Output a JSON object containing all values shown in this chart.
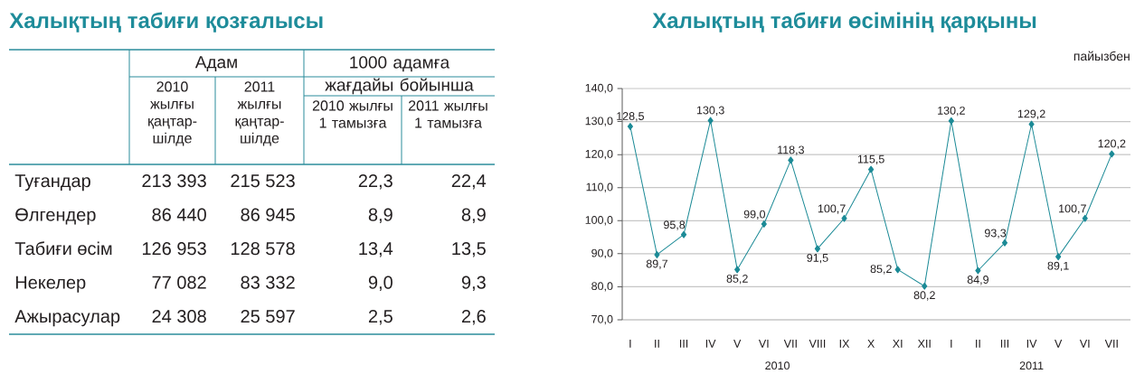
{
  "chart_data": [
    {
      "type": "other",
      "title": "Халықтың табиғи қозғалысы",
      "annotations": [
        "Адам",
        "1000 адамға жағдайы бойынша"
      ],
      "categories": [
        "2010 жылғы қаңтар-шілде",
        "2011 жылғы қаңтар-шілде",
        "2010 жылғы 1 тамызға",
        "2011 жылғы 1 тамызға"
      ],
      "y_categories": [
        "Туғандар",
        "Өлгендер",
        "Табиғи өсім",
        "Некелер",
        "Ажырасулар"
      ],
      "cell_labels": [
        [
          "213 393",
          "215 523",
          "22,3",
          "22,4"
        ],
        [
          "86 440",
          "86 945",
          "8,9",
          "8,9"
        ],
        [
          "126 953",
          "128 578",
          "13,4",
          "13,5"
        ],
        [
          "77 082",
          "83 332",
          "9,0",
          "9,3"
        ],
        [
          "24 308",
          "25 597",
          "2,5",
          "2,6"
        ]
      ]
    },
    {
      "type": "line",
      "title": "Халықтың табиғи өсімінің қарқыны",
      "ylabel": "пайызбен",
      "categories": [
        "I",
        "II",
        "III",
        "IV",
        "V",
        "VI",
        "VII",
        "VIII",
        "IX",
        "X",
        "XI",
        "XII",
        "I",
        "II",
        "III",
        "IV",
        "V",
        "VI",
        "VII"
      ],
      "values": [
        128.5,
        89.7,
        95.8,
        130.3,
        85.2,
        99.0,
        118.3,
        91.5,
        100.7,
        115.5,
        85.2,
        80.2,
        130.2,
        84.9,
        93.3,
        129.2,
        89.1,
        100.7,
        120.2
      ],
      "value_labels": [
        "128,5",
        "89,7",
        "95,8",
        "130,3",
        "85,2",
        "99,0",
        "118,3",
        "91,5",
        "100,7",
        "115,5",
        "85,2",
        "80,2",
        "130,2",
        "84,9",
        "93,3",
        "129,2",
        "89,1",
        "100,7",
        "120,2"
      ],
      "color": "#1b8a96",
      "marker": "diamond",
      "grid": "y",
      "ylim": [
        70,
        140
      ],
      "yticks": [
        {
          "value": 70,
          "label": "70,0"
        },
        {
          "value": 80,
          "label": "80,0"
        },
        {
          "value": 90,
          "label": "90,0"
        },
        {
          "value": 100,
          "label": "100,0"
        },
        {
          "value": 110,
          "label": "110,0"
        },
        {
          "value": 120,
          "label": "120,0"
        },
        {
          "value": 130,
          "label": "130,0"
        },
        {
          "value": 140,
          "label": "140,0"
        }
      ],
      "annotations": [
        "2010",
        "2011"
      ]
    }
  ]
}
